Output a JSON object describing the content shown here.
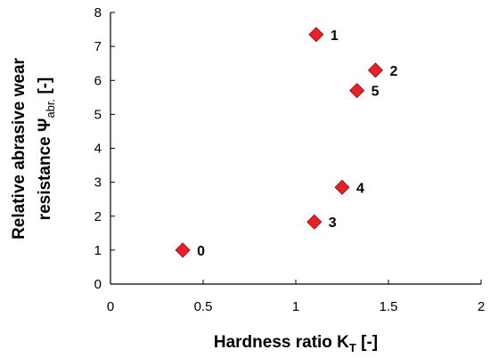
{
  "chart_data": {
    "type": "scatter",
    "xlabel_main": "Hardness ratio K",
    "xlabel_sub": "T",
    "xlabel_tail": " [-]",
    "ylabel_line1": "Relative abrasive wear",
    "ylabel_line2_main": "resistance Ψ",
    "ylabel_line2_sub": "abr.",
    "ylabel_line2_tail": " [-]",
    "xlim": [
      0,
      2
    ],
    "ylim": [
      0,
      8
    ],
    "xticks": [
      "0",
      "0.5",
      "1",
      "1.5",
      "2"
    ],
    "yticks": [
      "0",
      "1",
      "2",
      "3",
      "4",
      "5",
      "6",
      "7",
      "8"
    ],
    "marker": "diamond",
    "marker_color": "#e8202a",
    "grid": false,
    "points": [
      {
        "label": "0",
        "x": 0.39,
        "y": 1.0
      },
      {
        "label": "1",
        "x": 1.11,
        "y": 7.35
      },
      {
        "label": "2",
        "x": 1.43,
        "y": 6.3
      },
      {
        "label": "3",
        "x": 1.1,
        "y": 1.83
      },
      {
        "label": "4",
        "x": 1.25,
        "y": 2.85
      },
      {
        "label": "5",
        "x": 1.33,
        "y": 5.7
      }
    ]
  }
}
